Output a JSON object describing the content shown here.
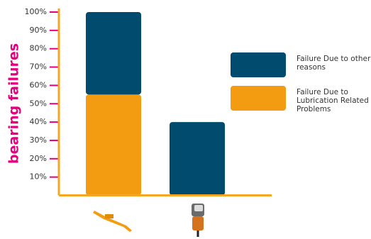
{
  "chart_data": {
    "type": "stacked_bar",
    "y_label": "bearing failures",
    "categories": [
      null,
      null
    ],
    "series": [
      {
        "name": "Failure Due to Lubrication Related Problems",
        "color": "#f39c12",
        "values": [
          55,
          null
        ]
      },
      {
        "name": "Failure Due to other reasons",
        "color": "#004b6e",
        "values": [
          45,
          40
        ]
      }
    ],
    "ylim": [
      0,
      100
    ],
    "yticks": [
      {
        "value": 10,
        "label": "10%"
      },
      {
        "value": 20,
        "label": "20%"
      },
      {
        "value": 30,
        "label": "30%"
      },
      {
        "value": 40,
        "label": "40%"
      },
      {
        "value": 50,
        "label": "50%"
      },
      {
        "value": 60,
        "label": "60%"
      },
      {
        "value": 70,
        "label": "70%"
      },
      {
        "value": 80,
        "label": "80%"
      },
      {
        "value": 90,
        "label": "90%"
      },
      {
        "value": 100,
        "label": "100%"
      }
    ]
  }
}
